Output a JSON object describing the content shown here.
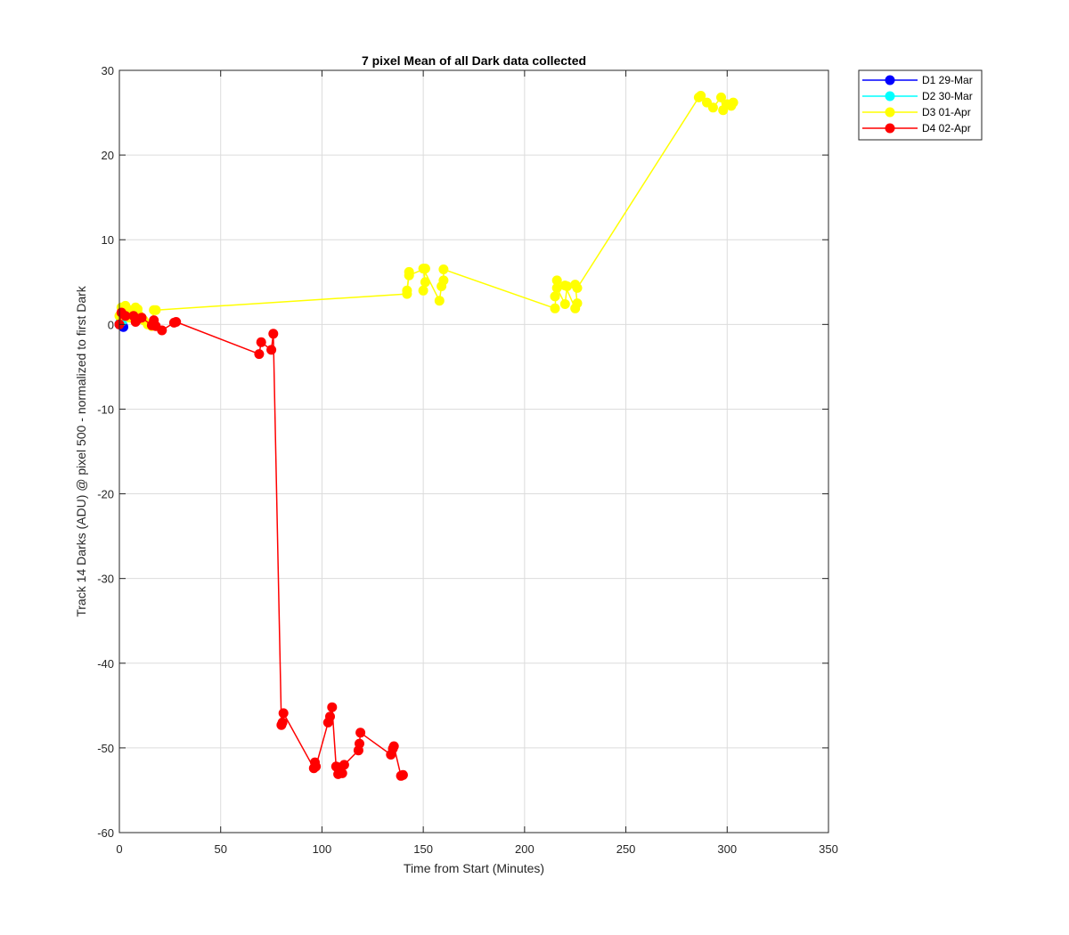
{
  "chart_data": {
    "type": "line",
    "title": "7 pixel Mean of all Dark data collected",
    "xlabel": "Time from Start (Minutes)",
    "ylabel": "Track 14 Darks (ADU) @ pixel 500 - normalized to first Dark",
    "xlim": [
      0,
      350
    ],
    "ylim": [
      -60,
      30
    ],
    "xticks": [
      0,
      50,
      100,
      150,
      200,
      250,
      300,
      350
    ],
    "yticks": [
      -60,
      -50,
      -40,
      -30,
      -20,
      -10,
      0,
      10,
      20,
      30
    ],
    "grid": true,
    "legend_position": "outside-top-right",
    "series": [
      {
        "name": "D1 29-Mar",
        "color": "#0000ff",
        "x": [
          0,
          1,
          2
        ],
        "y": [
          0,
          0.2,
          -0.3
        ]
      },
      {
        "name": "D2 30-Mar",
        "color": "#00ffff",
        "x": [
          0.5,
          1.5
        ],
        "y": [
          0.3,
          0.4
        ]
      },
      {
        "name": "D3 01-Apr",
        "color": "#ffff00",
        "x": [
          0,
          1,
          2,
          3,
          4,
          5,
          6,
          7,
          8,
          9,
          10,
          12,
          14,
          16,
          17,
          18,
          142,
          143,
          142,
          143,
          151,
          150,
          151,
          150,
          158,
          159,
          160,
          160,
          215,
          216,
          215,
          216,
          220,
          221,
          220,
          225,
          226,
          225,
          226,
          286,
          287,
          290,
          293,
          297,
          298,
          300,
          302,
          303
        ],
        "y": [
          1,
          2,
          1.5,
          2.2,
          1.8,
          0.8,
          1,
          1.5,
          2,
          1.8,
          1,
          0.5,
          0,
          -0.2,
          1.7,
          1.7,
          3.6,
          6.2,
          4,
          5.8,
          6.6,
          4,
          5,
          6.6,
          2.8,
          4.5,
          5.2,
          6.5,
          1.9,
          5.2,
          3.3,
          4.3,
          2.4,
          4.5,
          4.6,
          1.9,
          2.5,
          4.7,
          4.3,
          26.8,
          27,
          26.2,
          25.6,
          26.8,
          25.3,
          26,
          25.8,
          26.2
        ]
      },
      {
        "name": "D4 02-Apr",
        "color": "#ff0000",
        "x": [
          0,
          1,
          3,
          7,
          8,
          9,
          11,
          16,
          17,
          18,
          21,
          27,
          28,
          69,
          70,
          75,
          76,
          80,
          80.5,
          81,
          96,
          96.5,
          97,
          103,
          104,
          105,
          107,
          108,
          109,
          110,
          111,
          118,
          118.5,
          119,
          134,
          135,
          135.5,
          139,
          140
        ],
        "y": [
          0,
          1.4,
          1,
          1,
          0.3,
          0.6,
          0.8,
          -0.1,
          0.5,
          -0.2,
          -0.7,
          0.2,
          0.3,
          -3.5,
          -2.1,
          -3,
          -1.1,
          -47.3,
          -47,
          -45.9,
          -52.4,
          -51.7,
          -52.2,
          -47,
          -46.3,
          -45.2,
          -52.2,
          -53.1,
          -52.3,
          -53,
          -52,
          -50.3,
          -49.5,
          -48.2,
          -50.8,
          -50.1,
          -49.8,
          -53.3,
          -53.2
        ]
      }
    ]
  }
}
